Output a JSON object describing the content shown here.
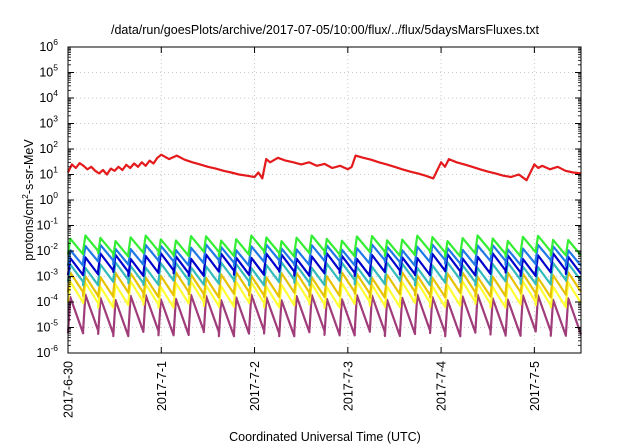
{
  "chart_data": {
    "type": "line",
    "title": "/data/run/goesPlots/archive/2017-07-05/10:00/flux/../flux/5daysMarsFluxes.txt",
    "xlabel": "Coordinated Universal Time (UTC)",
    "ylabel": {
      "prefix": "protons/cm",
      "superscript": "2",
      "suffix": "-s-sr-MeV"
    },
    "yscale": "log",
    "ylim": [
      1e-06,
      1000000.0
    ],
    "xlim": [
      "2017-06-30T00:00",
      "2017-07-05T12:00"
    ],
    "grid": true,
    "legend": "none",
    "yticks": [
      {
        "base": "10",
        "exp": "-6",
        "value": 1e-06
      },
      {
        "base": "10",
        "exp": "-5",
        "value": 1e-05
      },
      {
        "base": "10",
        "exp": "-4",
        "value": 0.0001
      },
      {
        "base": "10",
        "exp": "-3",
        "value": 0.001
      },
      {
        "base": "10",
        "exp": "-2",
        "value": 0.01
      },
      {
        "base": "10",
        "exp": "-1",
        "value": 0.1
      },
      {
        "base": "10",
        "exp": "0",
        "value": 1
      },
      {
        "base": "10",
        "exp": "1",
        "value": 10
      },
      {
        "base": "10",
        "exp": "2",
        "value": 100
      },
      {
        "base": "10",
        "exp": "3",
        "value": 1000
      },
      {
        "base": "10",
        "exp": "4",
        "value": 10000
      },
      {
        "base": "10",
        "exp": "5",
        "value": 100000
      },
      {
        "base": "10",
        "exp": "6",
        "value": 1000000
      }
    ],
    "xticks": [
      {
        "label": "2017-6-30",
        "value": "2017-06-30T00:00"
      },
      {
        "label": "2017-7-1",
        "value": "2017-07-01T00:00"
      },
      {
        "label": "2017-7-2",
        "value": "2017-07-02T00:00"
      },
      {
        "label": "2017-7-3",
        "value": "2017-07-03T00:00"
      },
      {
        "label": "2017-7-4",
        "value": "2017-07-04T00:00"
      },
      {
        "label": "2017-7-5",
        "value": "2017-07-05T00:00"
      }
    ],
    "series": [
      {
        "color": "#e41a1c",
        "x": [
          "2017-06-30T00:00",
          "2017-06-30T01:00",
          "2017-06-30T02:00",
          "2017-06-30T03:00",
          "2017-06-30T04:00",
          "2017-06-30T05:00",
          "2017-06-30T06:00",
          "2017-06-30T07:00",
          "2017-06-30T08:00",
          "2017-06-30T09:00",
          "2017-06-30T10:00",
          "2017-06-30T11:00",
          "2017-06-30T12:00",
          "2017-06-30T13:00",
          "2017-06-30T14:00",
          "2017-06-30T15:00",
          "2017-06-30T16:00",
          "2017-06-30T17:00",
          "2017-06-30T18:00",
          "2017-06-30T19:00",
          "2017-06-30T20:00",
          "2017-06-30T21:00",
          "2017-06-30T22:00",
          "2017-06-30T23:00",
          "2017-07-01T00:00",
          "2017-07-01T02:00",
          "2017-07-01T04:00",
          "2017-07-01T06:00",
          "2017-07-01T08:00",
          "2017-07-01T10:00",
          "2017-07-01T12:00",
          "2017-07-01T14:00",
          "2017-07-01T16:00",
          "2017-07-01T18:00",
          "2017-07-01T20:00",
          "2017-07-01T22:00",
          "2017-07-02T00:00",
          "2017-07-02T01:00",
          "2017-07-02T02:00",
          "2017-07-02T03:00",
          "2017-07-02T04:00",
          "2017-07-02T06:00",
          "2017-07-02T08:00",
          "2017-07-02T10:00",
          "2017-07-02T12:00",
          "2017-07-02T14:00",
          "2017-07-02T16:00",
          "2017-07-02T18:00",
          "2017-07-02T20:00",
          "2017-07-02T22:00",
          "2017-07-03T00:00",
          "2017-07-03T01:00",
          "2017-07-03T02:00",
          "2017-07-03T04:00",
          "2017-07-03T06:00",
          "2017-07-03T08:00",
          "2017-07-03T10:00",
          "2017-07-03T12:00",
          "2017-07-03T14:00",
          "2017-07-03T16:00",
          "2017-07-03T18:00",
          "2017-07-03T20:00",
          "2017-07-03T22:00",
          "2017-07-04T00:00",
          "2017-07-04T01:00",
          "2017-07-04T02:00",
          "2017-07-04T04:00",
          "2017-07-04T06:00",
          "2017-07-04T08:00",
          "2017-07-04T10:00",
          "2017-07-04T12:00",
          "2017-07-04T14:00",
          "2017-07-04T16:00",
          "2017-07-04T18:00",
          "2017-07-04T20:00",
          "2017-07-04T22:00",
          "2017-07-05T00:00",
          "2017-07-05T01:00",
          "2017-07-05T02:00",
          "2017-07-05T04:00",
          "2017-07-05T06:00",
          "2017-07-05T08:00",
          "2017-07-05T10:00",
          "2017-07-05T12:00"
        ],
        "values": [
          12,
          25,
          18,
          28,
          22,
          16,
          20,
          14,
          11,
          15,
          10,
          17,
          14,
          20,
          15,
          24,
          18,
          27,
          20,
          30,
          22,
          35,
          27,
          45,
          60,
          40,
          55,
          38,
          30,
          25,
          20,
          17,
          14,
          12,
          10,
          9,
          8,
          12,
          7,
          40,
          30,
          45,
          35,
          30,
          25,
          30,
          22,
          26,
          18,
          22,
          16,
          20,
          55,
          45,
          38,
          30,
          25,
          20,
          16,
          13,
          11,
          9,
          7,
          30,
          20,
          40,
          30,
          25,
          20,
          16,
          13,
          11,
          9,
          8,
          10,
          6,
          25,
          18,
          22,
          16,
          20,
          14,
          12,
          11
        ]
      },
      {
        "color": "#33ee33",
        "base": 0.025,
        "low": 0.008,
        "teeth": 34
      },
      {
        "color": "#1f77e8",
        "base": 0.011,
        "low": 0.0035,
        "teeth": 34
      },
      {
        "color": "#0000cc",
        "base": 0.005,
        "low": 0.0014,
        "teeth": 34
      },
      {
        "color": "#33bbbb",
        "base": 0.0022,
        "low": 0.0006,
        "teeth": 34
      },
      {
        "color": "#e6c200",
        "base": 0.0009,
        "low": 0.0002,
        "teeth": 34
      },
      {
        "color": "#ffff33",
        "base": 0.0004,
        "low": 8e-05,
        "teeth": 34
      },
      {
        "color": "#a03c7a",
        "base": 0.00012,
        "low": 6e-06,
        "teeth": 34
      }
    ]
  }
}
